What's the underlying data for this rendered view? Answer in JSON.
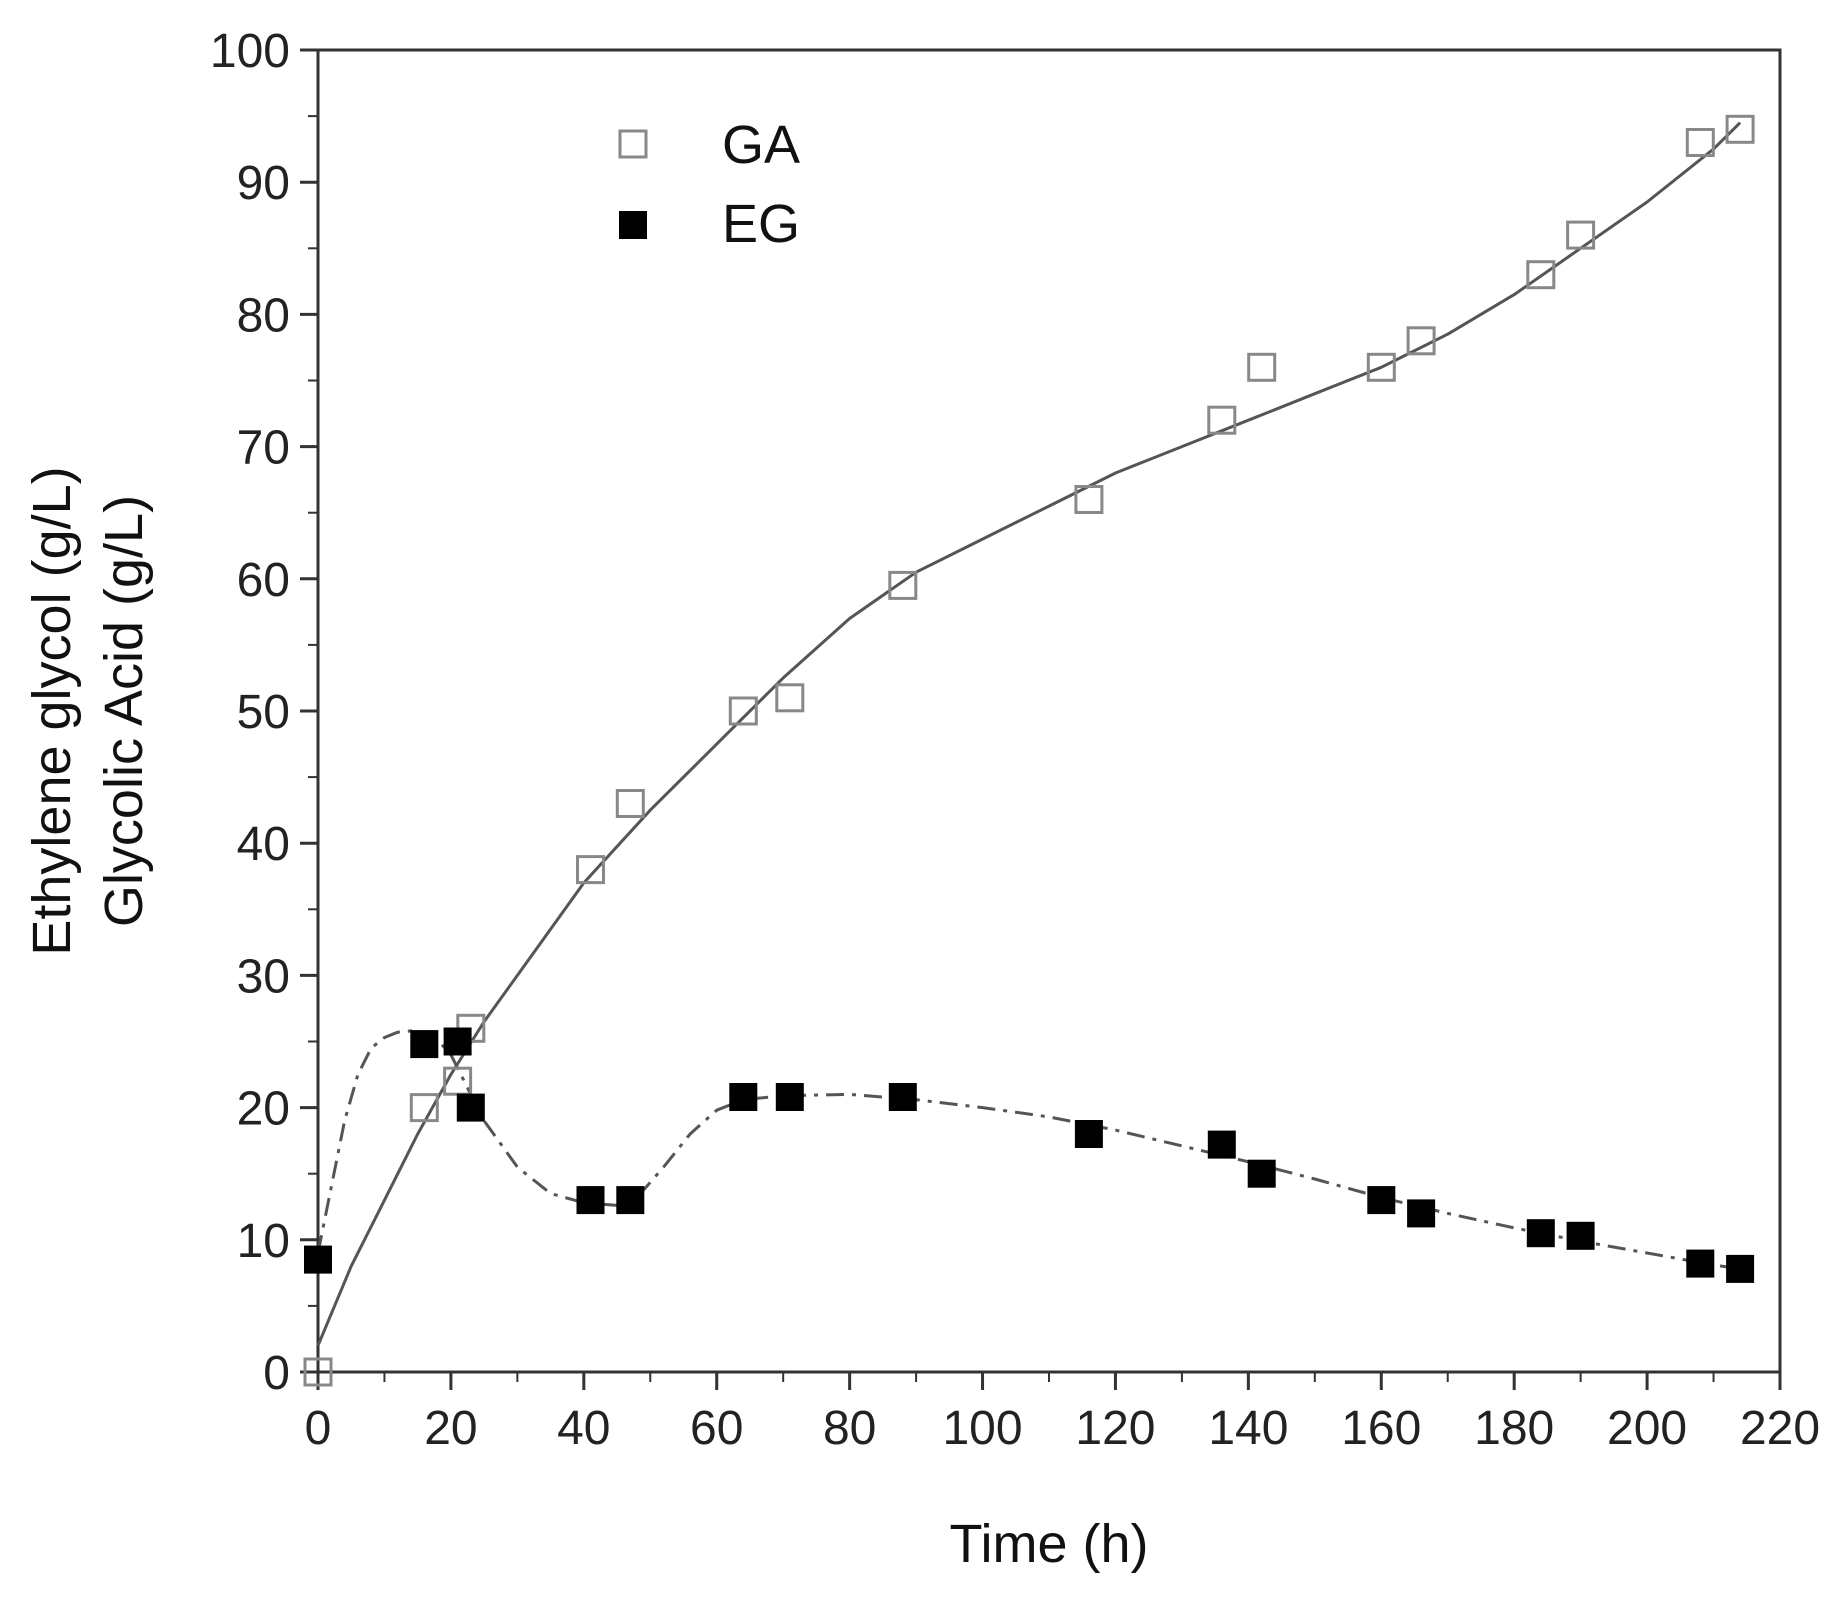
{
  "chart_data": {
    "type": "scatter",
    "title": "",
    "xlabel": "Time (h)",
    "ylabel_lines": [
      "Ethylene glycol (g/L)",
      "Glycolic Acid (g/L)"
    ],
    "xlim": [
      0,
      220
    ],
    "ylim": [
      0,
      100
    ],
    "xticks": [
      0,
      20,
      40,
      60,
      80,
      100,
      120,
      140,
      160,
      180,
      200,
      220
    ],
    "yticks": [
      0,
      10,
      20,
      30,
      40,
      50,
      60,
      70,
      80,
      90,
      100
    ],
    "xtick_labels": [
      "0",
      "20",
      "40",
      "60",
      "80",
      "100",
      "120",
      "140",
      "160",
      "180",
      "200",
      "220"
    ],
    "ytick_labels": [
      "0",
      "10",
      "20",
      "30",
      "40",
      "50",
      "60",
      "70",
      "80",
      "90",
      "100"
    ],
    "grid": false,
    "legend_position": "top-left",
    "series": [
      {
        "name": "GA",
        "marker": "open-square",
        "color": "#888888",
        "x": [
          0,
          16,
          21,
          23,
          41,
          47,
          64,
          71,
          88,
          116,
          136,
          142,
          160,
          166,
          184,
          190,
          208,
          214
        ],
        "y": [
          0,
          20,
          22,
          26,
          38,
          43,
          50,
          51,
          59.5,
          66,
          72,
          76,
          76,
          78,
          83,
          86,
          93,
          94
        ],
        "fit": {
          "style": "solid",
          "color": "#555555",
          "x": [
            0,
            5,
            10,
            15,
            20,
            25,
            30,
            40,
            50,
            60,
            70,
            80,
            90,
            100,
            110,
            120,
            130,
            140,
            150,
            160,
            170,
            180,
            190,
            200,
            210,
            214
          ],
          "y": [
            2,
            8,
            13,
            18,
            22.5,
            26.5,
            30,
            37,
            42.5,
            47.5,
            52.5,
            57,
            60.5,
            63,
            65.5,
            68,
            70,
            72,
            74,
            76,
            78.5,
            81.5,
            85,
            88.5,
            92.5,
            94.5
          ]
        }
      },
      {
        "name": "EG",
        "marker": "filled-square",
        "color": "#000000",
        "x": [
          0,
          16,
          21,
          23,
          41,
          47,
          64,
          71,
          88,
          116,
          136,
          142,
          160,
          166,
          184,
          190,
          208,
          214
        ],
        "y": [
          8.5,
          24.8,
          25,
          20,
          13,
          13,
          20.8,
          20.8,
          20.8,
          18,
          17.2,
          15,
          13,
          12,
          10.5,
          10.3,
          8.2,
          7.8
        ],
        "fit": {
          "style": "dash-dot",
          "color": "#555555",
          "x": [
            0,
            2,
            4,
            6,
            8,
            10,
            12,
            14,
            16,
            18,
            20,
            22,
            25,
            30,
            35,
            40,
            45,
            48,
            52,
            56,
            60,
            64,
            70,
            80,
            90,
            100,
            110,
            120,
            130,
            140,
            150,
            160,
            170,
            180,
            190,
            200,
            210,
            214
          ],
          "y": [
            9,
            14,
            19,
            22.5,
            24.5,
            25.3,
            25.7,
            25.8,
            25.6,
            25.1,
            24,
            22,
            19,
            15.5,
            13.5,
            12.8,
            12.6,
            13.2,
            15.5,
            18,
            19.8,
            20.6,
            20.9,
            21,
            20.6,
            20,
            19.3,
            18.3,
            17.1,
            15.9,
            14.6,
            13.2,
            12,
            10.9,
            9.9,
            9,
            8.1,
            7.8
          ]
        }
      }
    ]
  }
}
